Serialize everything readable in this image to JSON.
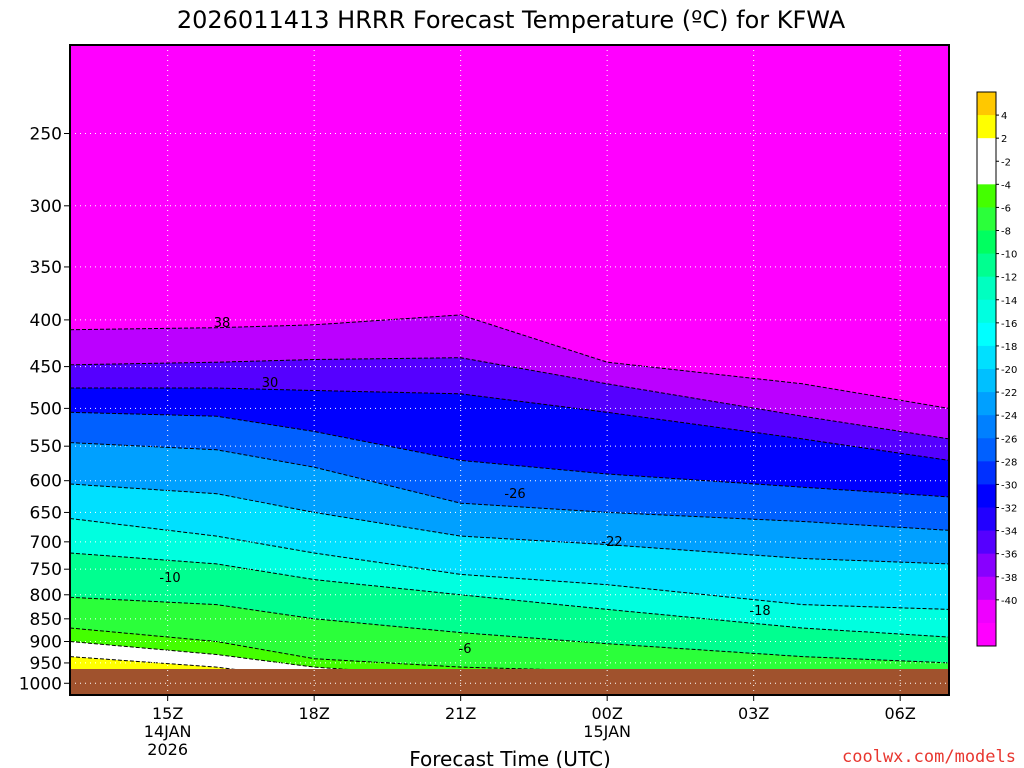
{
  "title": "2026011413 HRRR Forecast Temperature (ºC) for KFWA",
  "watermark": "coolwx.com/models",
  "chart_data": {
    "type": "heatmap",
    "title": "2026011413 HRRR Forecast Temperature (ºC) for KFWA",
    "xlabel": "Forecast Time (UTC)",
    "ylabel": "",
    "y_axis": {
      "scale": "pressure (inverted, log)",
      "range": [
        1000,
        200
      ],
      "ticks": [
        250,
        300,
        350,
        400,
        450,
        500,
        550,
        600,
        650,
        700,
        750,
        800,
        850,
        900,
        950,
        1000
      ],
      "tick_labels": [
        "250",
        "300",
        "350",
        "400",
        "450",
        "500",
        "550",
        "600",
        "650",
        "700",
        "750",
        "800",
        "850",
        "900",
        "950",
        "1000"
      ]
    },
    "x_axis": {
      "range_hours_utc": [
        "2026-01-14T13Z",
        "2026-01-15T07Z"
      ],
      "ticks": [
        {
          "line1": "15Z",
          "line2": "14JAN",
          "line3": "2026"
        },
        {
          "line1": "18Z",
          "line2": "",
          "line3": ""
        },
        {
          "line1": "21Z",
          "line2": "",
          "line3": ""
        },
        {
          "line1": "00Z",
          "line2": "15JAN",
          "line3": ""
        },
        {
          "line1": "03Z",
          "line2": "",
          "line3": ""
        },
        {
          "line1": "06Z",
          "line2": "",
          "line3": ""
        }
      ]
    },
    "grid": true,
    "colorbar": {
      "placement": "right",
      "labels": [
        "4",
        "2",
        "-2",
        "-4",
        "-6",
        "-8",
        "-10",
        "-12",
        "-14",
        "-16",
        "-18",
        "-20",
        "-22",
        "-24",
        "-26",
        "-28",
        "-30",
        "-32",
        "-34",
        "-36",
        "-38",
        "-40"
      ],
      "colors": [
        "#ffc800",
        "#ffff00",
        "#ffffff",
        "#ffffff",
        "#44ff00",
        "#2bff3a",
        "#00ff60",
        "#00ff90",
        "#00ffc0",
        "#00ffe0",
        "#00ffff",
        "#00e0ff",
        "#00c0ff",
        "#00a0ff",
        "#0080ff",
        "#0060ff",
        "#0030ff",
        "#0000ff",
        "#2200ff",
        "#5500ff",
        "#8800ff",
        "#bb00ff",
        "#ee00ff",
        "#ff00ff"
      ]
    },
    "contour_labels": [
      "38",
      "30",
      "-26",
      "-22",
      "-18",
      "-10",
      "-6"
    ],
    "fields": [
      {
        "temp": -40,
        "pressure_at_time": [
          [
            13,
            410
          ],
          [
            16,
            408
          ],
          [
            18,
            405
          ],
          [
            21,
            395
          ],
          [
            24,
            445
          ],
          [
            28,
            470
          ],
          [
            31,
            500
          ]
        ]
      },
      {
        "temp": -36,
        "pressure_at_time": [
          [
            13,
            448
          ],
          [
            16,
            445
          ],
          [
            18,
            442
          ],
          [
            21,
            440
          ],
          [
            24,
            470
          ],
          [
            28,
            510
          ],
          [
            31,
            540
          ]
        ]
      },
      {
        "temp": -32,
        "pressure_at_time": [
          [
            13,
            475
          ],
          [
            16,
            475
          ],
          [
            18,
            478
          ],
          [
            21,
            482
          ],
          [
            24,
            505
          ],
          [
            28,
            540
          ],
          [
            31,
            570
          ]
        ]
      },
      {
        "temp": -28,
        "pressure_at_time": [
          [
            13,
            505
          ],
          [
            16,
            510
          ],
          [
            18,
            530
          ],
          [
            21,
            570
          ],
          [
            24,
            590
          ],
          [
            28,
            610
          ],
          [
            31,
            625
          ]
        ]
      },
      {
        "temp": -24,
        "pressure_at_time": [
          [
            13,
            545
          ],
          [
            16,
            555
          ],
          [
            18,
            580
          ],
          [
            21,
            635
          ],
          [
            24,
            650
          ],
          [
            28,
            665
          ],
          [
            31,
            680
          ]
        ]
      },
      {
        "temp": -20,
        "pressure_at_time": [
          [
            13,
            605
          ],
          [
            16,
            620
          ],
          [
            18,
            650
          ],
          [
            21,
            690
          ],
          [
            24,
            705
          ],
          [
            28,
            730
          ],
          [
            31,
            740
          ]
        ]
      },
      {
        "temp": -16,
        "pressure_at_time": [
          [
            13,
            660
          ],
          [
            16,
            690
          ],
          [
            18,
            720
          ],
          [
            21,
            760
          ],
          [
            24,
            780
          ],
          [
            28,
            820
          ],
          [
            31,
            830
          ]
        ]
      },
      {
        "temp": -12,
        "pressure_at_time": [
          [
            13,
            720
          ],
          [
            16,
            740
          ],
          [
            18,
            770
          ],
          [
            21,
            800
          ],
          [
            24,
            830
          ],
          [
            28,
            870
          ],
          [
            31,
            890
          ]
        ]
      },
      {
        "temp": -8,
        "pressure_at_time": [
          [
            13,
            805
          ],
          [
            16,
            820
          ],
          [
            18,
            850
          ],
          [
            21,
            880
          ],
          [
            24,
            905
          ],
          [
            28,
            935
          ],
          [
            31,
            950
          ]
        ]
      },
      {
        "temp": -4,
        "pressure_at_time": [
          [
            13,
            870
          ],
          [
            16,
            900
          ],
          [
            18,
            940
          ],
          [
            21,
            960
          ],
          [
            24,
            970
          ],
          [
            28,
            980
          ],
          [
            31,
            985
          ]
        ]
      },
      {
        "temp": -2,
        "pressure_at_time": [
          [
            13,
            900
          ],
          [
            16,
            930
          ],
          [
            18,
            960
          ],
          [
            21,
            985
          ],
          [
            24,
            990
          ],
          [
            28,
            995
          ],
          [
            31,
            1000
          ]
        ]
      },
      {
        "temp": 2,
        "pressure_at_time": [
          [
            13,
            935
          ],
          [
            16,
            960
          ],
          [
            18,
            990
          ],
          [
            21,
            1000
          ],
          [
            24,
            1000
          ],
          [
            28,
            1000
          ],
          [
            31,
            1000
          ]
        ]
      }
    ]
  }
}
